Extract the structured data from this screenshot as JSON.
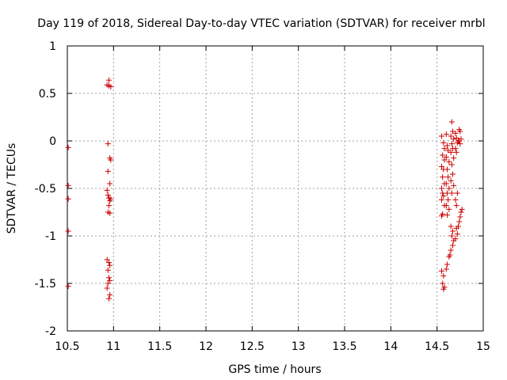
{
  "chart_data": {
    "type": "scatter",
    "title": "Day 119 of 2018, Sidereal Day-to-day VTEC variation (SDTVAR) for receiver mrbl",
    "xlabel": "GPS time / hours",
    "ylabel": "SDTVAR / TECUs",
    "xlim": [
      10.5,
      15
    ],
    "ylim": [
      -2,
      1
    ],
    "x_ticks": [
      "10.5",
      "11",
      "11.5",
      "12",
      "12.5",
      "13",
      "13.5",
      "14",
      "14.5",
      "15"
    ],
    "x_tick_values": [
      10.5,
      11,
      11.5,
      12,
      12.5,
      13,
      13.5,
      14,
      14.5,
      15
    ],
    "y_ticks": [
      "1",
      "0.5",
      "0",
      "-0.5",
      "-1",
      "-1.5",
      "-2"
    ],
    "y_tick_values": [
      1,
      0.5,
      0,
      -0.5,
      -1,
      -1.5,
      -2
    ],
    "grid": true,
    "marker_color": "#cc0000",
    "series": [
      {
        "marker": "plus",
        "points": [
          [
            10.51,
            -0.07
          ],
          [
            10.51,
            -0.47
          ],
          [
            10.51,
            -0.61
          ],
          [
            10.51,
            -0.95
          ],
          [
            10.51,
            -1.53
          ],
          [
            10.95,
            0.64
          ],
          [
            10.95,
            0.58
          ],
          [
            10.97,
            0.57
          ],
          [
            10.93,
            0.59
          ],
          [
            10.94,
            -0.03
          ],
          [
            10.96,
            -0.18
          ],
          [
            10.97,
            -0.2
          ],
          [
            10.94,
            -0.32
          ],
          [
            10.96,
            -0.45
          ],
          [
            10.93,
            -0.52
          ],
          [
            10.94,
            -0.57
          ],
          [
            10.95,
            -0.6
          ],
          [
            10.96,
            -0.63
          ],
          [
            10.97,
            -0.61
          ],
          [
            10.95,
            -0.68
          ],
          [
            10.94,
            -0.75
          ],
          [
            10.96,
            -0.76
          ],
          [
            10.93,
            -1.25
          ],
          [
            10.95,
            -1.28
          ],
          [
            10.96,
            -1.31
          ],
          [
            10.94,
            -1.36
          ],
          [
            10.95,
            -1.44
          ],
          [
            10.96,
            -1.47
          ],
          [
            10.94,
            -1.5
          ],
          [
            10.93,
            -1.55
          ],
          [
            10.96,
            -1.62
          ],
          [
            10.95,
            -1.66
          ],
          [
            14.55,
            0.05
          ],
          [
            14.57,
            -0.02
          ],
          [
            14.58,
            -0.08
          ],
          [
            14.56,
            -0.15
          ],
          [
            14.58,
            -0.2
          ],
          [
            14.55,
            -0.27
          ],
          [
            14.57,
            -0.3
          ],
          [
            14.56,
            -0.38
          ],
          [
            14.58,
            -0.45
          ],
          [
            14.55,
            -0.5
          ],
          [
            14.56,
            -0.55
          ],
          [
            14.57,
            -0.58
          ],
          [
            14.55,
            -0.62
          ],
          [
            14.58,
            -0.68
          ],
          [
            14.56,
            -0.77
          ],
          [
            14.55,
            -0.79
          ],
          [
            14.55,
            -1.37
          ],
          [
            14.57,
            -1.42
          ],
          [
            14.56,
            -1.5
          ],
          [
            14.58,
            -1.54
          ],
          [
            14.57,
            -1.56
          ],
          [
            14.6,
            0.07
          ],
          [
            14.61,
            -0.05
          ],
          [
            14.62,
            -0.1
          ],
          [
            14.6,
            -0.17
          ],
          [
            14.63,
            -0.22
          ],
          [
            14.61,
            -0.3
          ],
          [
            14.62,
            -0.38
          ],
          [
            14.6,
            -0.45
          ],
          [
            14.63,
            -0.5
          ],
          [
            14.61,
            -0.55
          ],
          [
            14.62,
            -0.62
          ],
          [
            14.6,
            -0.68
          ],
          [
            14.63,
            -0.72
          ],
          [
            14.61,
            -0.78
          ],
          [
            14.6,
            -1.35
          ],
          [
            14.61,
            -1.3
          ],
          [
            14.63,
            -1.22
          ],
          [
            14.64,
            -1.2
          ],
          [
            14.66,
            0.2
          ],
          [
            14.67,
            0.1
          ],
          [
            14.65,
            0.05
          ],
          [
            14.68,
            0.02
          ],
          [
            14.66,
            -0.03
          ],
          [
            14.67,
            -0.08
          ],
          [
            14.65,
            -0.12
          ],
          [
            14.68,
            -0.18
          ],
          [
            14.66,
            -0.25
          ],
          [
            14.67,
            -0.35
          ],
          [
            14.65,
            -0.42
          ],
          [
            14.68,
            -0.47
          ],
          [
            14.66,
            -0.55
          ],
          [
            14.65,
            -0.9
          ],
          [
            14.67,
            -0.95
          ],
          [
            14.66,
            -1.0
          ],
          [
            14.68,
            -1.05
          ],
          [
            14.67,
            -1.1
          ],
          [
            14.65,
            -1.15
          ],
          [
            14.7,
            0.08
          ],
          [
            14.71,
            0.03
          ],
          [
            14.72,
            -0.02
          ],
          [
            14.7,
            -0.08
          ],
          [
            14.73,
            0.0
          ],
          [
            14.71,
            -0.12
          ],
          [
            14.72,
            -0.55
          ],
          [
            14.7,
            -0.62
          ],
          [
            14.71,
            -0.68
          ],
          [
            14.7,
            -1.03
          ],
          [
            14.72,
            -0.98
          ],
          [
            14.71,
            -0.92
          ],
          [
            14.74,
            0.12
          ],
          [
            14.75,
            0.1
          ],
          [
            14.76,
            0.02
          ],
          [
            14.74,
            0.0
          ],
          [
            14.75,
            -0.03
          ],
          [
            14.73,
            -0.9
          ],
          [
            14.74,
            -0.85
          ],
          [
            14.75,
            -0.8
          ],
          [
            14.76,
            -0.75
          ],
          [
            14.77,
            -0.72
          ]
        ]
      }
    ]
  }
}
